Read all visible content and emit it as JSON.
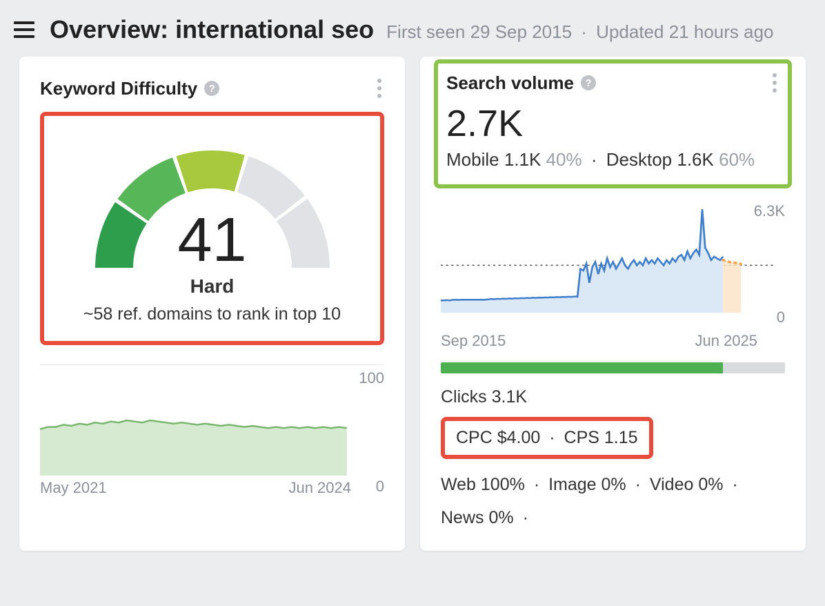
{
  "header": {
    "title_prefix": "Overview:",
    "keyword": "international seo",
    "first_seen_label": "First seen",
    "first_seen_value": "29 Sep 2015",
    "updated_label": "Updated",
    "updated_value": "21 hours ago"
  },
  "kd_card": {
    "title": "Keyword Difficulty",
    "score": "41",
    "label": "Hard",
    "subtext": "~58 ref. domains to rank in top 10",
    "gauge": {
      "segments": [
        {
          "start": 180,
          "end": 214,
          "color": "#2e9e4d"
        },
        {
          "start": 216,
          "end": 250,
          "color": "#57b657"
        },
        {
          "start": 252,
          "end": 286,
          "color": "#a8c93e"
        },
        {
          "start": 288,
          "end": 322,
          "color": "#e0e2e5"
        },
        {
          "start": 324,
          "end": 360,
          "color": "#e0e2e5"
        }
      ],
      "inner_r": 115,
      "outer_r": 170
    },
    "mini": {
      "ylim": [
        0,
        100
      ],
      "ymax_label": "100",
      "ymin_label": "0",
      "x_start": "May 2021",
      "x_end": "Jun 2024",
      "line_color": "#79b76e",
      "fill_color": "#d6ead1",
      "points": [
        42,
        44,
        44,
        46,
        45,
        47,
        46,
        48,
        47,
        49,
        48,
        50,
        49,
        48,
        50,
        49,
        48,
        47,
        48,
        47,
        46,
        47,
        46,
        45,
        46,
        45,
        44,
        45,
        44,
        43,
        44,
        43,
        44,
        43,
        44,
        43,
        44,
        43,
        44,
        43
      ]
    },
    "highlight_color": "#e74c3c"
  },
  "sv_card": {
    "title": "Search volume",
    "big_value": "2.7K",
    "mobile_label": "Mobile",
    "mobile_value": "1.1K",
    "mobile_pct": "40%",
    "desktop_label": "Desktop",
    "desktop_value": "1.6K",
    "desktop_pct": "60%",
    "highlight_color": "#8bc34a",
    "volume_chart": {
      "ymax_label": "6.3K",
      "ymin_label": "0",
      "ylim": [
        0,
        6300
      ],
      "x_start": "Sep 2015",
      "x_end": "Jun 2025",
      "line_color": "#3f7ecb",
      "fill_color": "#dbe8f5",
      "forecast_color": "#f5a34a",
      "forecast_fill": "#fbe2c6",
      "avg_line_y": 2700,
      "points": [
        700,
        700,
        720,
        700,
        730,
        740,
        730,
        740,
        740,
        740,
        740,
        740,
        740,
        740,
        740,
        740,
        760,
        780,
        770,
        790,
        780,
        800,
        790,
        810,
        800,
        820,
        810,
        830,
        820,
        840,
        830,
        850,
        840,
        860,
        850,
        870,
        860,
        880,
        870,
        890,
        880,
        900,
        890,
        910,
        900,
        920,
        910,
        2500,
        2400,
        2800,
        1700,
        2600,
        2900,
        2200,
        2800,
        2400,
        3100,
        2600,
        2900,
        2500,
        2800,
        3100,
        2700,
        2500,
        2800,
        3000,
        2700,
        2900,
        2700,
        3100,
        2800,
        3000,
        2800,
        3100,
        2900,
        2700,
        3000,
        2800,
        3100,
        2900,
        3200,
        3300,
        3000,
        3500,
        3100,
        3400,
        3600,
        3300,
        5900,
        3700,
        3400,
        3000,
        3200,
        3100,
        3000,
        3200
      ],
      "forecast_points": [
        3000,
        2950,
        2900,
        2850,
        2850,
        2800,
        2780
      ]
    },
    "clicks_bar": {
      "fill_pct": 82,
      "fill_color": "#4caf50",
      "track_color": "#d9dcdf"
    },
    "clicks_label": "Clicks",
    "clicks_value": "3.1K",
    "cpc_label": "CPC",
    "cpc_value": "$4.00",
    "cps_label": "CPS",
    "cps_value": "1.15",
    "cpc_highlight_color": "#e74c3c",
    "distribution": [
      {
        "label": "Web",
        "pct": "100%"
      },
      {
        "label": "Image",
        "pct": "0%"
      },
      {
        "label": "Video",
        "pct": "0%"
      },
      {
        "label": "News",
        "pct": "0%"
      }
    ]
  }
}
